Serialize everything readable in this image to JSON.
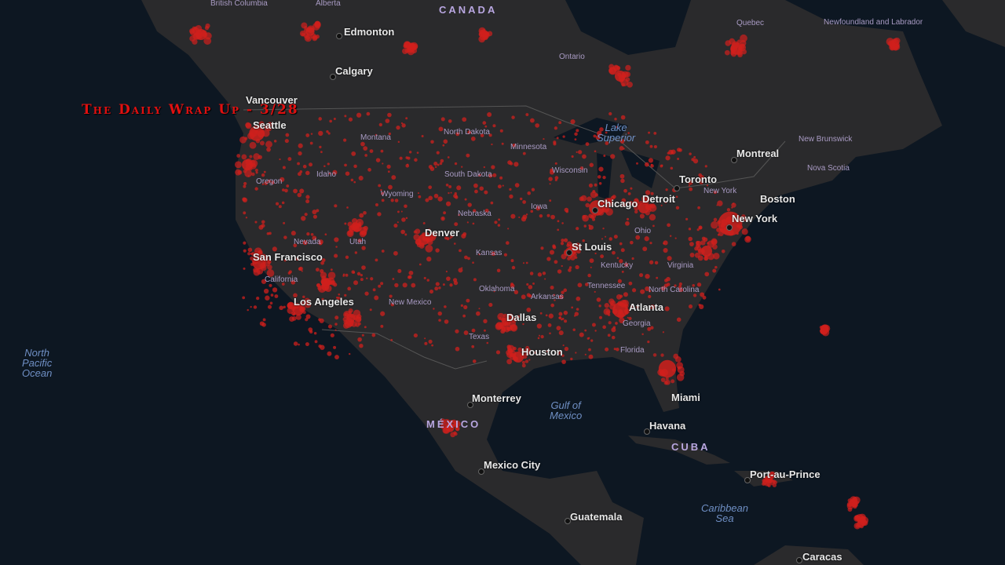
{
  "title": "The Daily Wrap Up - 3/28",
  "colors": {
    "ocean": "#0d1722",
    "land": "#2a2a2c",
    "case_dot": "#d0201c"
  },
  "labels": {
    "countries": [
      "CANADA",
      "MÉXICO",
      "CUBA"
    ],
    "cities": [
      "Edmonton",
      "Calgary",
      "Vancouver",
      "Seattle",
      "Montreal",
      "Toronto",
      "Chicago",
      "Detroit",
      "New York",
      "Boston",
      "St Louis",
      "Denver",
      "San Francisco",
      "Los Angeles",
      "Dallas",
      "Houston",
      "Atlanta",
      "Miami",
      "Havana",
      "Monterrey",
      "Mexico City",
      "Guatemala",
      "Port-au-Prince",
      "Caracas"
    ],
    "regions": [
      "British Columbia",
      "Alberta",
      "Ontario",
      "Quebec",
      "Newfoundland and Labrador",
      "New Brunswick",
      "Nova Scotia",
      "Montana",
      "North Dakota",
      "Minnesota",
      "South Dakota",
      "Wisconsin",
      "Idaho",
      "Oregon",
      "Wyoming",
      "Iowa",
      "Nebraska",
      "Nevada",
      "Utah",
      "Kansas",
      "California",
      "Ohio",
      "Kentucky",
      "Virginia",
      "New York",
      "Oklahoma",
      "Arkansas",
      "Tennessee",
      "North Carolina",
      "New Mexico",
      "Georgia",
      "Texas",
      "Florida"
    ],
    "water": [
      "Lake Superior",
      "North Pacific Ocean",
      "Gulf of Mexico",
      "Caribbean Sea"
    ]
  }
}
